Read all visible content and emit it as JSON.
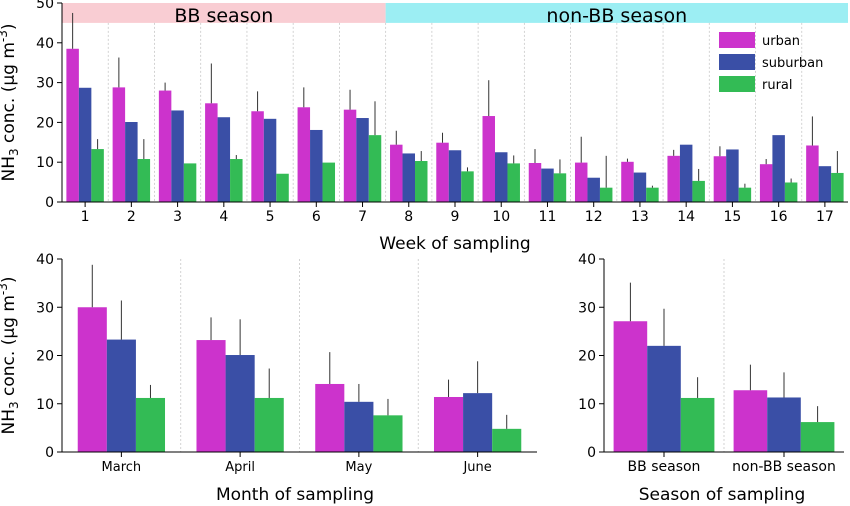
{
  "colors": {
    "urban": "#cc33cc",
    "suburban": "#3a4fa6",
    "rural": "#33bb55",
    "bb_band": "#f9cdd3",
    "nonbb_band": "#9ceef3",
    "error": "#333333"
  },
  "chart_data": [
    {
      "type": "bar",
      "title": "",
      "bands": [
        {
          "label": "BB  season",
          "from": 1,
          "to": 7
        },
        {
          "label": "non-BB season",
          "from": 8,
          "to": 17
        }
      ],
      "categories": [
        "1",
        "2",
        "3",
        "4",
        "5",
        "6",
        "7",
        "8",
        "9",
        "10",
        "11",
        "12",
        "13",
        "14",
        "15",
        "16",
        "17"
      ],
      "xlabel": "Week of sampling",
      "ylabel": "NH3 conc. (μg m-3)",
      "ylim": [
        0,
        50
      ],
      "yticks": [
        "0",
        "10",
        "20",
        "30",
        "40",
        "50"
      ],
      "legend": {
        "placement": "top-right",
        "entries": [
          "urban",
          "suburban",
          "rural"
        ]
      },
      "series": [
        {
          "name": "urban",
          "values": [
            38.5,
            28.8,
            28.0,
            24.8,
            22.8,
            23.8,
            23.2,
            14.4,
            14.9,
            21.6,
            9.8,
            9.9,
            10.1,
            11.6,
            11.5,
            9.5,
            14.2
          ],
          "errors": [
            9,
            7.5,
            2,
            10,
            5,
            5,
            5,
            3.5,
            2.5,
            9,
            3.5,
            6.5,
            0.8,
            1.5,
            2.5,
            1.3,
            7.3
          ]
        },
        {
          "name": "suburban",
          "values": [
            28.7,
            20.1,
            23.0,
            21.3,
            20.9,
            18.1,
            21.1,
            12.2,
            13.0,
            12.5,
            8.4,
            6.1,
            7.4,
            14.4,
            13.2,
            16.8,
            9.0
          ]
        },
        {
          "name": "rural",
          "values": [
            13.3,
            10.8,
            9.7,
            10.8,
            7.1,
            9.9,
            16.8,
            10.3,
            7.7,
            9.7,
            7.2,
            3.6,
            3.6,
            5.3,
            3.6,
            4.9,
            7.3
          ],
          "errors": [
            2.5,
            5,
            0,
            1,
            0,
            0,
            8.5,
            2.5,
            1,
            2,
            3.5,
            8,
            0.5,
            3,
            1,
            1,
            5.5
          ]
        }
      ],
      "grid": "vertical dashed"
    },
    {
      "type": "bar",
      "title": "",
      "categories": [
        "March",
        "April",
        "May",
        "June"
      ],
      "xlabel": "Month of sampling",
      "ylabel": "NH3 conc. (μg m-3)",
      "ylim": [
        0,
        40
      ],
      "yticks": [
        "0",
        "10",
        "20",
        "30",
        "40"
      ],
      "series": [
        {
          "name": "urban",
          "values": [
            30.0,
            23.2,
            14.1,
            11.4
          ],
          "errors": [
            8.8,
            4.7,
            6.6,
            3.6
          ]
        },
        {
          "name": "suburban",
          "values": [
            23.3,
            20.1,
            10.4,
            12.2
          ],
          "errors": [
            8.1,
            7.4,
            3.7,
            6.6
          ]
        },
        {
          "name": "rural",
          "values": [
            11.2,
            11.2,
            7.6,
            4.8
          ],
          "errors": [
            2.7,
            6.1,
            3.4,
            2.9
          ]
        }
      ],
      "grid": "vertical dashed"
    },
    {
      "type": "bar",
      "title": "",
      "categories": [
        "BB  season",
        "non-BB season"
      ],
      "xlabel": "Season of sampling",
      "ylabel": "",
      "ylim": [
        0,
        40
      ],
      "yticks": [
        "0",
        "10",
        "20",
        "30",
        "40"
      ],
      "series": [
        {
          "name": "urban",
          "values": [
            27.1,
            12.8
          ],
          "errors": [
            8.0,
            5.3
          ]
        },
        {
          "name": "suburban",
          "values": [
            22.0,
            11.3
          ],
          "errors": [
            7.7,
            5.2
          ]
        },
        {
          "name": "rural",
          "values": [
            11.2,
            6.2
          ],
          "errors": [
            4.3,
            3.3
          ]
        }
      ],
      "grid": "vertical dashed"
    }
  ]
}
